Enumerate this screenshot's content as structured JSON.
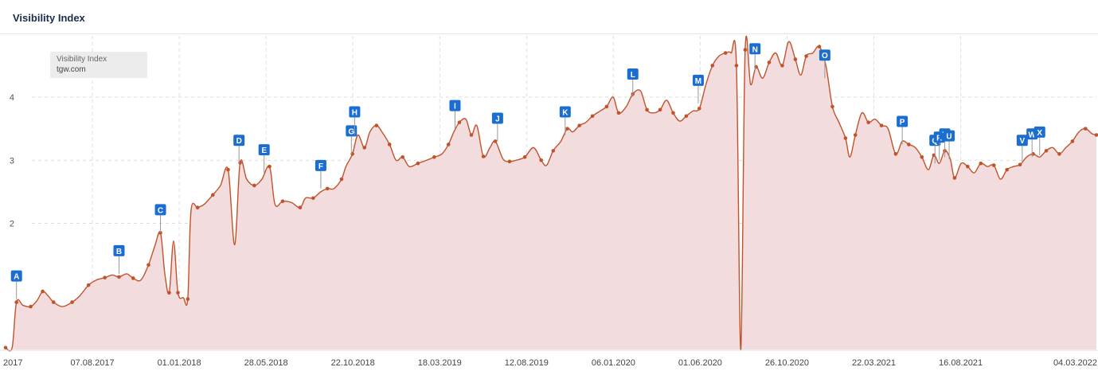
{
  "title": "Visibility Index",
  "legend": {
    "label": "Visibility Index",
    "site": "tgw.com"
  },
  "colors": {
    "line": "#c1532a",
    "fill": "#f2dcde",
    "grid": "#dddddd",
    "marker": "#1b6ed0",
    "title": "#1c2b4a"
  },
  "chart_data": {
    "type": "area",
    "title": "Visibility Index",
    "series_name": "tgw.com",
    "ylim": [
      0,
      4.8
    ],
    "yticks": [
      2,
      3,
      4
    ],
    "xticks": [
      {
        "label": "2017",
        "t": 0.0
      },
      {
        "label": "07.08.2017",
        "t": 0.0796
      },
      {
        "label": "01.01.2018",
        "t": 0.1592
      },
      {
        "label": "28.05.2018",
        "t": 0.2388
      },
      {
        "label": "22.10.2018",
        "t": 0.3184
      },
      {
        "label": "18.03.2019",
        "t": 0.398
      },
      {
        "label": "12.08.2019",
        "t": 0.4776
      },
      {
        "label": "06.01.2020",
        "t": 0.5572
      },
      {
        "label": "01.06.2020",
        "t": 0.6368
      },
      {
        "label": "26.10.2020",
        "t": 0.7164
      },
      {
        "label": "22.03.2021",
        "t": 0.796
      },
      {
        "label": "16.08.2021",
        "t": 0.8756
      },
      {
        "label": "04.03.2022",
        "t": 0.9972
      }
    ],
    "points": [
      [
        0.0,
        0.03
      ],
      [
        0.006,
        0.03
      ],
      [
        0.01,
        0.75
      ],
      [
        0.016,
        0.7
      ],
      [
        0.023,
        0.68
      ],
      [
        0.029,
        0.78
      ],
      [
        0.034,
        0.92
      ],
      [
        0.039,
        0.85
      ],
      [
        0.044,
        0.75
      ],
      [
        0.052,
        0.68
      ],
      [
        0.061,
        0.75
      ],
      [
        0.068,
        0.85
      ],
      [
        0.076,
        1.02
      ],
      [
        0.083,
        1.1
      ],
      [
        0.091,
        1.14
      ],
      [
        0.098,
        1.18
      ],
      [
        0.104,
        1.15
      ],
      [
        0.111,
        1.2
      ],
      [
        0.117,
        1.13
      ],
      [
        0.124,
        1.1
      ],
      [
        0.131,
        1.34
      ],
      [
        0.137,
        1.65
      ],
      [
        0.142,
        1.85
      ],
      [
        0.146,
        1.2
      ],
      [
        0.15,
        0.9
      ],
      [
        0.154,
        1.72
      ],
      [
        0.158,
        0.9
      ],
      [
        0.163,
        0.82
      ],
      [
        0.167,
        0.8
      ],
      [
        0.17,
        2.2
      ],
      [
        0.176,
        2.25
      ],
      [
        0.182,
        2.3
      ],
      [
        0.19,
        2.45
      ],
      [
        0.197,
        2.6
      ],
      [
        0.204,
        2.85
      ],
      [
        0.21,
        1.66
      ],
      [
        0.215,
        2.96
      ],
      [
        0.221,
        2.7
      ],
      [
        0.228,
        2.6
      ],
      [
        0.235,
        2.7
      ],
      [
        0.242,
        2.9
      ],
      [
        0.247,
        2.3
      ],
      [
        0.254,
        2.35
      ],
      [
        0.262,
        2.33
      ],
      [
        0.27,
        2.25
      ],
      [
        0.275,
        2.4
      ],
      [
        0.282,
        2.4
      ],
      [
        0.289,
        2.5
      ],
      [
        0.295,
        2.55
      ],
      [
        0.301,
        2.55
      ],
      [
        0.308,
        2.7
      ],
      [
        0.312,
        2.9
      ],
      [
        0.318,
        3.1
      ],
      [
        0.323,
        3.4
      ],
      [
        0.329,
        3.2
      ],
      [
        0.334,
        3.45
      ],
      [
        0.34,
        3.55
      ],
      [
        0.345,
        3.45
      ],
      [
        0.352,
        3.25
      ],
      [
        0.358,
        3.0
      ],
      [
        0.364,
        3.05
      ],
      [
        0.37,
        2.9
      ],
      [
        0.378,
        2.95
      ],
      [
        0.386,
        3.0
      ],
      [
        0.393,
        3.05
      ],
      [
        0.4,
        3.1
      ],
      [
        0.406,
        3.25
      ],
      [
        0.411,
        3.45
      ],
      [
        0.416,
        3.6
      ],
      [
        0.422,
        3.65
      ],
      [
        0.427,
        3.4
      ],
      [
        0.432,
        3.55
      ],
      [
        0.438,
        3.06
      ],
      [
        0.444,
        3.2
      ],
      [
        0.449,
        3.3
      ],
      [
        0.456,
        3.02
      ],
      [
        0.462,
        2.98
      ],
      [
        0.468,
        3.0
      ],
      [
        0.476,
        3.05
      ],
      [
        0.484,
        3.2
      ],
      [
        0.491,
        3.0
      ],
      [
        0.496,
        2.92
      ],
      [
        0.502,
        3.15
      ],
      [
        0.509,
        3.3
      ],
      [
        0.515,
        3.5
      ],
      [
        0.52,
        3.45
      ],
      [
        0.526,
        3.55
      ],
      [
        0.532,
        3.6
      ],
      [
        0.538,
        3.7
      ],
      [
        0.545,
        3.78
      ],
      [
        0.551,
        3.85
      ],
      [
        0.557,
        4.0
      ],
      [
        0.562,
        3.75
      ],
      [
        0.569,
        3.85
      ],
      [
        0.575,
        4.05
      ],
      [
        0.582,
        4.1
      ],
      [
        0.588,
        3.8
      ],
      [
        0.594,
        3.75
      ],
      [
        0.6,
        3.8
      ],
      [
        0.606,
        3.95
      ],
      [
        0.612,
        3.75
      ],
      [
        0.618,
        3.62
      ],
      [
        0.624,
        3.7
      ],
      [
        0.63,
        3.78
      ],
      [
        0.636,
        3.82
      ],
      [
        0.642,
        4.2
      ],
      [
        0.648,
        4.5
      ],
      [
        0.654,
        4.65
      ],
      [
        0.66,
        4.7
      ],
      [
        0.665,
        4.7
      ],
      [
        0.67,
        4.5
      ],
      [
        0.674,
        0.0
      ],
      [
        0.678,
        4.75
      ],
      [
        0.683,
        4.2
      ],
      [
        0.688,
        4.48
      ],
      [
        0.694,
        4.3
      ],
      [
        0.7,
        4.55
      ],
      [
        0.706,
        4.7
      ],
      [
        0.712,
        4.5
      ],
      [
        0.718,
        4.88
      ],
      [
        0.724,
        4.6
      ],
      [
        0.729,
        4.35
      ],
      [
        0.734,
        4.65
      ],
      [
        0.74,
        4.7
      ],
      [
        0.746,
        4.8
      ],
      [
        0.752,
        4.5
      ],
      [
        0.758,
        3.85
      ],
      [
        0.764,
        3.6
      ],
      [
        0.77,
        3.35
      ],
      [
        0.774,
        3.05
      ],
      [
        0.779,
        3.4
      ],
      [
        0.785,
        3.75
      ],
      [
        0.791,
        3.6
      ],
      [
        0.797,
        3.65
      ],
      [
        0.803,
        3.55
      ],
      [
        0.809,
        3.5
      ],
      [
        0.816,
        3.1
      ],
      [
        0.822,
        3.3
      ],
      [
        0.828,
        3.25
      ],
      [
        0.834,
        3.2
      ],
      [
        0.84,
        3.05
      ],
      [
        0.846,
        2.85
      ],
      [
        0.851,
        3.08
      ],
      [
        0.856,
        2.95
      ],
      [
        0.861,
        3.15
      ],
      [
        0.866,
        3.02
      ],
      [
        0.87,
        2.72
      ],
      [
        0.876,
        2.95
      ],
      [
        0.882,
        2.9
      ],
      [
        0.888,
        2.8
      ],
      [
        0.894,
        2.95
      ],
      [
        0.9,
        2.9
      ],
      [
        0.906,
        2.92
      ],
      [
        0.912,
        2.7
      ],
      [
        0.918,
        2.85
      ],
      [
        0.924,
        2.9
      ],
      [
        0.93,
        2.93
      ],
      [
        0.936,
        3.05
      ],
      [
        0.942,
        3.1
      ],
      [
        0.948,
        3.05
      ],
      [
        0.954,
        3.15
      ],
      [
        0.96,
        3.2
      ],
      [
        0.966,
        3.1
      ],
      [
        0.972,
        3.2
      ],
      [
        0.978,
        3.3
      ],
      [
        0.984,
        3.45
      ],
      [
        0.99,
        3.5
      ],
      [
        0.996,
        3.42
      ],
      [
        1.0,
        3.4
      ]
    ],
    "events": [
      {
        "label": "A",
        "t": 0.01,
        "v": 0.8
      },
      {
        "label": "B",
        "t": 0.104,
        "v": 1.2
      },
      {
        "label": "C",
        "t": 0.142,
        "v": 1.85
      },
      {
        "label": "D",
        "t": 0.214,
        "v": 2.95
      },
      {
        "label": "E",
        "t": 0.237,
        "v": 2.8
      },
      {
        "label": "F",
        "t": 0.289,
        "v": 2.55
      },
      {
        "label": "G",
        "t": 0.317,
        "v": 3.1
      },
      {
        "label": "H",
        "t": 0.32,
        "v": 3.4
      },
      {
        "label": "I",
        "t": 0.412,
        "v": 3.5
      },
      {
        "label": "J",
        "t": 0.451,
        "v": 3.3
      },
      {
        "label": "K",
        "t": 0.513,
        "v": 3.4
      },
      {
        "label": "L",
        "t": 0.575,
        "v": 4.0
      },
      {
        "label": "M",
        "t": 0.635,
        "v": 3.9
      },
      {
        "label": "N",
        "t": 0.687,
        "v": 4.4
      },
      {
        "label": "O",
        "t": 0.751,
        "v": 4.3
      },
      {
        "label": "P",
        "t": 0.822,
        "v": 3.25
      },
      {
        "label": "Q",
        "t": 0.852,
        "v": 2.95
      },
      {
        "label": "R",
        "t": 0.856,
        "v": 3.0
      },
      {
        "label": "T",
        "t": 0.861,
        "v": 3.05
      },
      {
        "label": "U",
        "t": 0.865,
        "v": 3.02
      },
      {
        "label": "V",
        "t": 0.932,
        "v": 2.95
      },
      {
        "label": "W",
        "t": 0.941,
        "v": 3.05
      },
      {
        "label": "X",
        "t": 0.948,
        "v": 3.08
      }
    ]
  }
}
